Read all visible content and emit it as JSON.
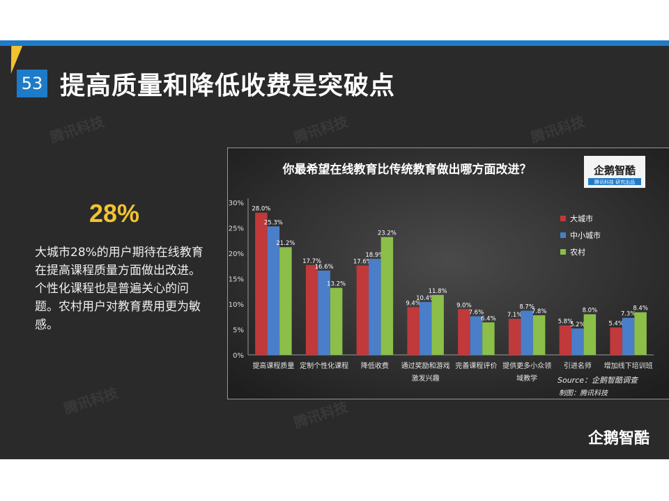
{
  "page_number": "53",
  "title": "提高质量和降低收费是突破点",
  "highlight": "28%",
  "description": "大城市28%的用户期待在线教育在提高课程质量方面做出改进。个性化课程也是普遍关心的问题。农村用户对教育费用更为敏感。",
  "watermark": "腾讯科技",
  "bottom_logo": "企鹅智酷",
  "colors": {
    "accent_blue": "#1e7bc8",
    "accent_yellow": "#f2c230",
    "big_city": "#c0393b",
    "mid_city": "#4a7ec8",
    "rural": "#8bbf4a"
  },
  "chart_data": {
    "type": "bar",
    "title": "你最希望在线教育比传统教育做出哪方面改进？",
    "badge": {
      "name": "企鹅智酷",
      "sub": "腾讯科技 研究出品"
    },
    "categories": [
      [
        "提高课程质量"
      ],
      [
        "定制个性化课程"
      ],
      [
        "降低收费"
      ],
      [
        "通过奖励和游戏",
        "激发兴趣"
      ],
      [
        "完善课程评价"
      ],
      [
        "提供更多小众领",
        "域教学"
      ],
      [
        "引进名师"
      ],
      [
        "增加线下培训班"
      ]
    ],
    "series": [
      {
        "name": "大城市",
        "color": "#c0393b",
        "values": [
          28.0,
          17.7,
          17.6,
          9.4,
          9.0,
          7.1,
          5.8,
          5.4
        ]
      },
      {
        "name": "中小城市",
        "color": "#4a7ec8",
        "values": [
          25.3,
          16.6,
          18.9,
          10.4,
          7.6,
          8.7,
          5.2,
          7.3
        ]
      },
      {
        "name": "农村",
        "color": "#8bbf4a",
        "values": [
          21.2,
          13.2,
          23.2,
          11.8,
          6.4,
          7.8,
          8.0,
          8.4
        ]
      }
    ],
    "y_ticks": [
      "0%",
      "5%",
      "10%",
      "15%",
      "20%",
      "25%",
      "30%"
    ],
    "ylim": [
      0,
      30
    ],
    "legend_position": "right",
    "source": "Source：企鹅智酷调查",
    "maker": "制图：腾讯科技"
  }
}
